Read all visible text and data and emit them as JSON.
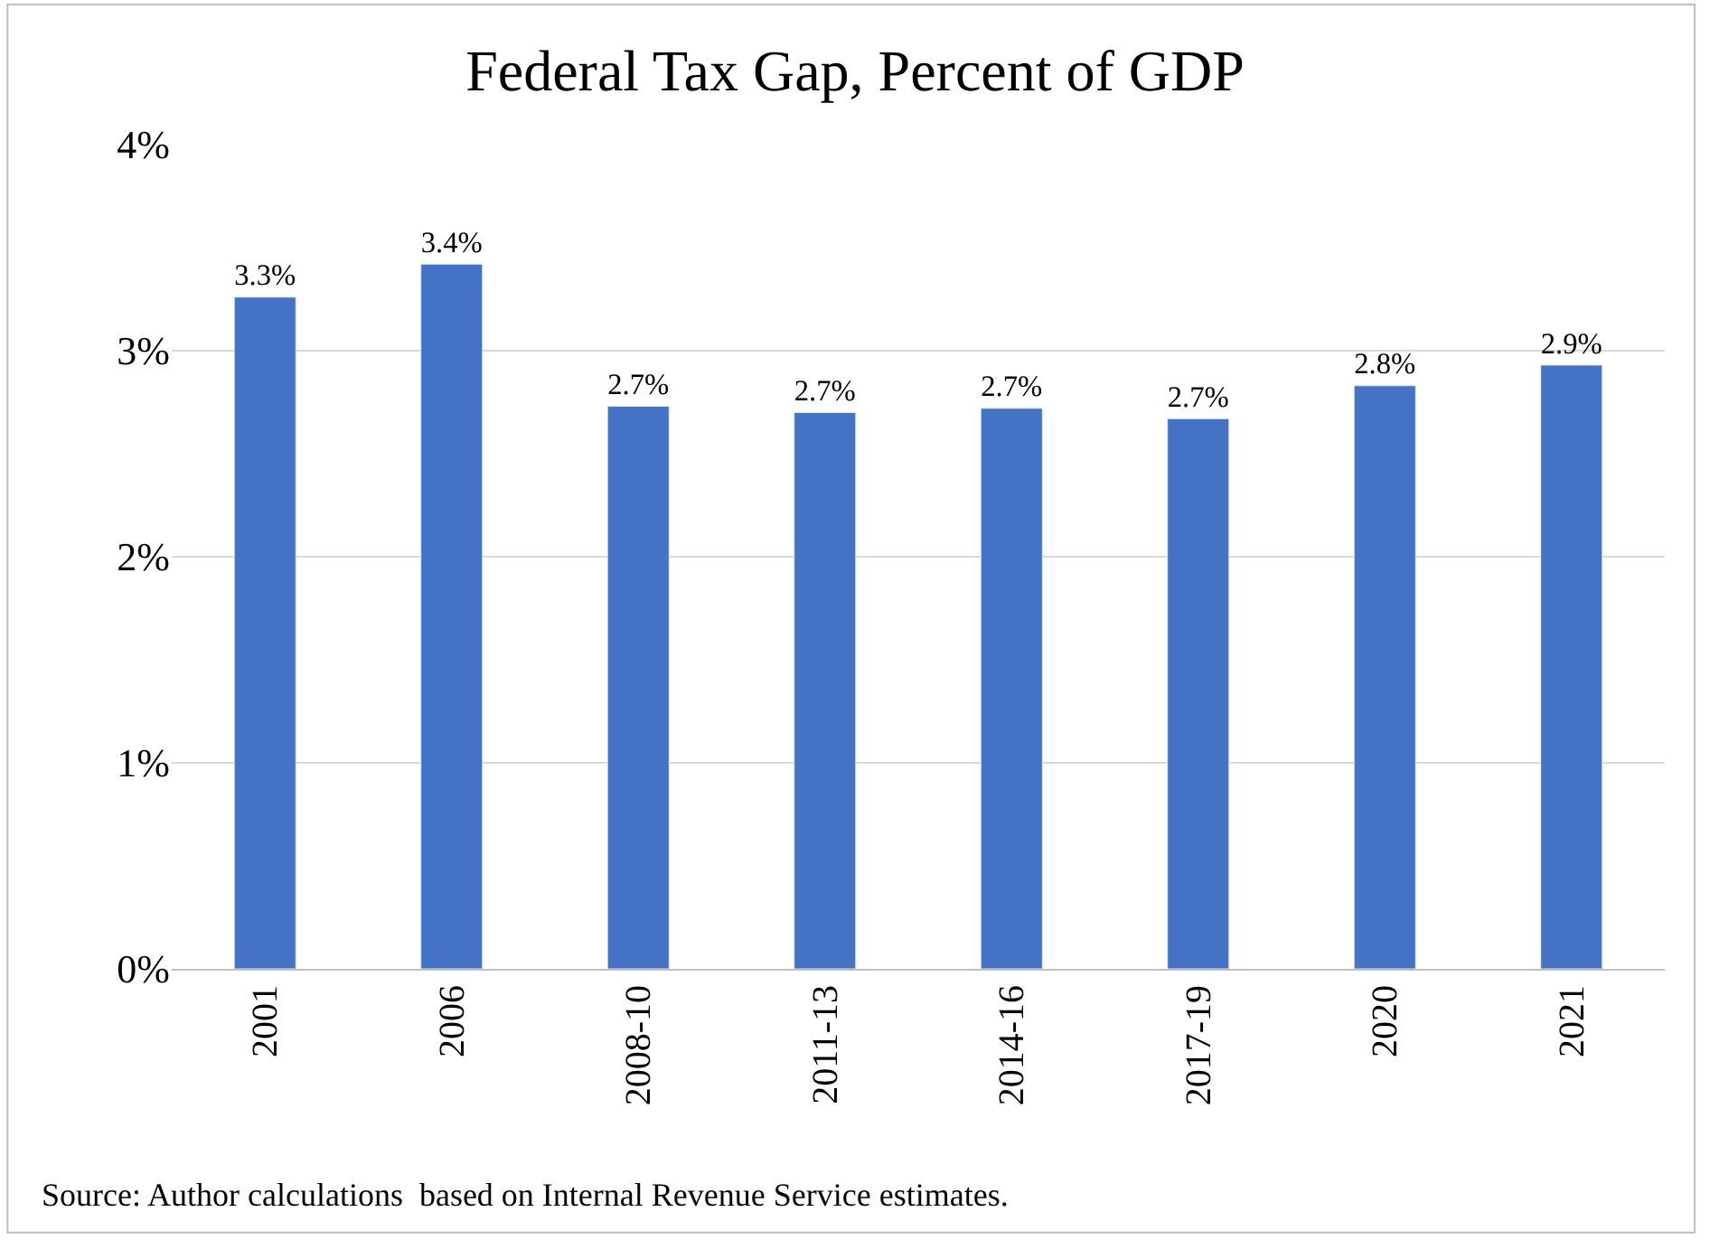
{
  "chart_data": {
    "type": "bar",
    "title": "Federal Tax Gap, Percent of GDP",
    "categories": [
      "2001",
      "2006",
      "2008-10",
      "2011-13",
      "2014-16",
      "2017-19",
      "2020",
      "2021"
    ],
    "values": [
      3.26,
      3.42,
      2.73,
      2.7,
      2.72,
      2.67,
      2.83,
      2.93
    ],
    "value_labels": [
      "3.3%",
      "3.4%",
      "2.7%",
      "2.7%",
      "2.7%",
      "2.7%",
      "2.8%",
      "2.9%"
    ],
    "color": "#4472c4",
    "ylim": [
      0,
      4
    ],
    "yticks": [
      {
        "value": 0,
        "label": "0%"
      },
      {
        "value": 1,
        "label": "1%"
      },
      {
        "value": 2,
        "label": "2%"
      },
      {
        "value": 3,
        "label": "3%"
      },
      {
        "value": 4,
        "label": "4%"
      }
    ],
    "grid": "y",
    "legend": false,
    "annotations": [
      "Source: Author calculations  based on Internal Revenue Service estimates."
    ]
  }
}
